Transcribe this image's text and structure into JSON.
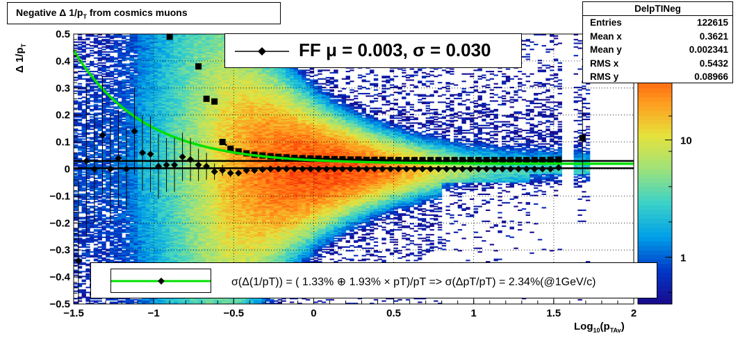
{
  "title": {
    "pre": "Negative ",
    "delta": "Δ",
    "mid": " 1/p",
    "sub": "T",
    "post": " from cosmics muons"
  },
  "stats": {
    "name": "DelpTINeg",
    "rows": [
      {
        "label": "Entries",
        "value": "122615"
      },
      {
        "label": "Mean x",
        "value": "0.3621"
      },
      {
        "label": "Mean y",
        "value": "0.002341"
      },
      {
        "label": "RMS x",
        "value": "0.5432"
      },
      {
        "label": "RMS y",
        "value": "0.08966"
      }
    ]
  },
  "fit_legend": {
    "text": "FF μ =  0.003, σ =   0.030"
  },
  "res_legend": {
    "text": "σ(Δ(1/pT)) = ( 1.33% ⊕  1.93% × pT)/pT => σ(ΔpT/pT) =  2.34%(@1GeV/c)"
  },
  "xaxis_title": {
    "main": "Log",
    "sub1": "10",
    "mid": "(p",
    "sub2": "TAv",
    "post": ")"
  },
  "yaxis_title": {
    "pre": "Δ 1/p",
    "sub": "T"
  },
  "colors": {
    "resolution_curve": "#00e000",
    "markers": "#000000",
    "palette": [
      "#1a0a8c",
      "#0038c8",
      "#00a0e8",
      "#3cd2c8",
      "#9ee27a",
      "#e6e23c",
      "#ff9a1e",
      "#ff4a0a",
      "#c80000"
    ]
  },
  "chart_data": {
    "type": "heatmap",
    "xlim": [
      -1.5,
      2
    ],
    "ylim": [
      -0.5,
      0.5
    ],
    "x_ticks": [
      -1.5,
      -1,
      -0.5,
      0,
      0.5,
      1,
      1.5,
      2
    ],
    "x_tick_labels": [
      "−1.5",
      "−1",
      "−0.5",
      "0",
      "0.5",
      "1",
      "1.5",
      "2"
    ],
    "y_ticks": [
      -0.5,
      -0.4,
      -0.3,
      -0.2,
      -0.1,
      0,
      0.1,
      0.2,
      0.3,
      0.4,
      0.5
    ],
    "y_tick_labels": [
      "−0.5",
      "−0.4",
      "−0.3",
      "−0.2",
      "−0.1",
      "0",
      "0.1",
      "0.2",
      "0.3",
      "0.4",
      "0.5"
    ],
    "color_scale": {
      "type": "log",
      "labels": [
        {
          "value": 1,
          "label": "1"
        },
        {
          "value": 10,
          "label": "10"
        }
      ],
      "range": [
        0.4,
        80
      ]
    },
    "grid": true,
    "mean_points": {
      "x": [
        -1.47,
        -1.42,
        -1.37,
        -1.32,
        -1.27,
        -1.22,
        -1.17,
        -1.12,
        -1.07,
        -1.02,
        -0.97,
        -0.92,
        -0.87,
        -0.82,
        -0.77,
        -0.72,
        -0.67,
        -0.62,
        -0.57,
        -0.52,
        -0.47,
        -0.42,
        -0.37,
        -0.32,
        -0.27,
        -0.22,
        -0.17,
        -0.12,
        -0.07,
        -0.02,
        0.03,
        0.08,
        0.13,
        0.18,
        0.23,
        0.28,
        0.33,
        0.38,
        0.43,
        0.48,
        0.53,
        0.58,
        0.63,
        0.68,
        0.73,
        0.78,
        0.83,
        0.88,
        0.93,
        0.98,
        1.03,
        1.08,
        1.13,
        1.18,
        1.23,
        1.28,
        1.33,
        1.38,
        1.43,
        1.48,
        1.53,
        1.68
      ],
      "y": [
        -0.34,
        0.03,
        0.0,
        0.125,
        0.0,
        0.04,
        0.0,
        0.14,
        0.06,
        0.055,
        0.01,
        0.015,
        0.015,
        0.045,
        0.035,
        0.015,
        0.01,
        -0.01,
        -0.005,
        -0.015,
        -0.015,
        -0.005,
        -0.005,
        -0.002,
        0.0,
        0.0,
        0.0,
        0.0,
        0.0,
        0.0,
        0.0,
        0.0,
        0.0,
        0.0,
        0.0,
        0.0,
        0.0,
        0.0,
        0.0,
        0.0,
        0.0,
        0.0,
        0.0,
        0.0,
        0.0,
        0.0,
        0.0,
        0.0,
        0.0,
        0.0,
        0.0,
        0.0,
        0.0,
        0.0,
        0.0,
        0.0,
        0.0,
        0.0,
        0.0,
        0.0,
        0.005,
        0.115
      ],
      "yerr": [
        0.3,
        0.28,
        0.2,
        0.22,
        0.2,
        0.18,
        0.15,
        0.16,
        0.14,
        0.14,
        0.12,
        0.1,
        0.1,
        0.09,
        0.08,
        0.06,
        0.05,
        0.03,
        0.02,
        0.015,
        0.01,
        0.008,
        0.006,
        0.005,
        0.004,
        0.004,
        0.004,
        0.004,
        0.004,
        0.004,
        0.004,
        0.004,
        0.004,
        0.004,
        0.004,
        0.004,
        0.004,
        0.004,
        0.004,
        0.004,
        0.004,
        0.004,
        0.004,
        0.004,
        0.004,
        0.004,
        0.004,
        0.004,
        0.004,
        0.004,
        0.004,
        0.004,
        0.004,
        0.004,
        0.004,
        0.004,
        0.004,
        0.004,
        0.004,
        0.005,
        0.006,
        0.14
      ]
    },
    "sigma_points": {
      "x": [
        -0.9,
        -0.72,
        -0.67,
        -0.62,
        -0.57,
        -0.52,
        -0.47,
        -0.42,
        -0.37,
        -0.32,
        -0.27,
        -0.22,
        -0.17,
        -0.12,
        -0.07,
        -0.02,
        0.03,
        0.08,
        0.13,
        0.18,
        0.23,
        0.28,
        0.33,
        0.38,
        0.43,
        0.48,
        0.53,
        0.58,
        0.63,
        0.68,
        0.73,
        0.78,
        0.83,
        0.88,
        0.93,
        0.98,
        1.03,
        1.08,
        1.13,
        1.18,
        1.23,
        1.28,
        1.33,
        1.38,
        1.43,
        1.48,
        1.53,
        1.68
      ],
      "y": [
        0.49,
        0.38,
        0.26,
        0.25,
        0.1,
        0.075,
        0.065,
        0.058,
        0.053,
        0.05,
        0.047,
        0.045,
        0.043,
        0.041,
        0.04,
        0.039,
        0.038,
        0.037,
        0.036,
        0.036,
        0.035,
        0.035,
        0.034,
        0.034,
        0.034,
        0.033,
        0.033,
        0.033,
        0.033,
        0.033,
        0.033,
        0.033,
        0.033,
        0.033,
        0.033,
        0.033,
        0.033,
        0.033,
        0.033,
        0.033,
        0.033,
        0.033,
        0.033,
        0.033,
        0.033,
        0.034,
        0.035,
        0.115
      ]
    },
    "fit_lines": {
      "mean": 0.003,
      "sigma_band": 0.03,
      "resolution_curve": {
        "a_percent": 1.33,
        "b_percent": 1.93
      }
    }
  }
}
